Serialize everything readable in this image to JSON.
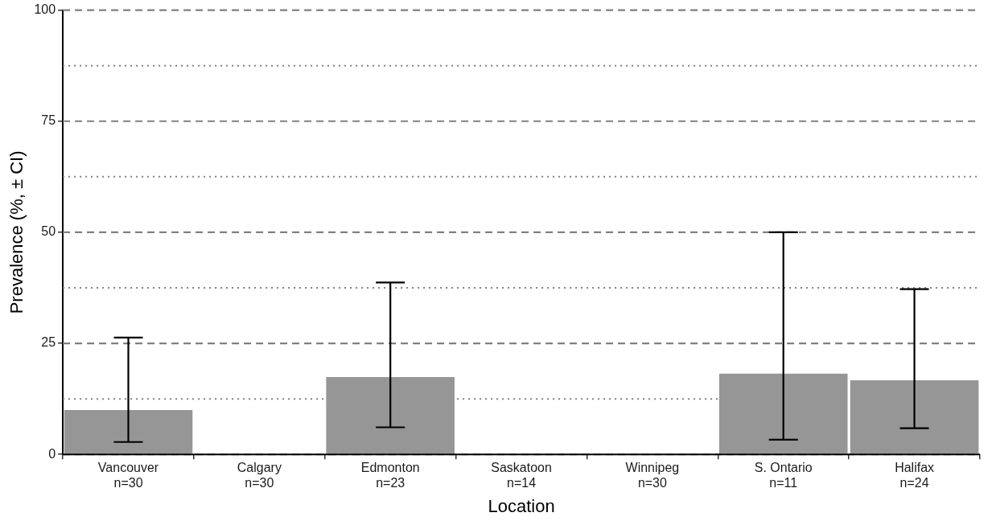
{
  "chart_data": {
    "type": "bar",
    "xlabel": "Location",
    "ylabel": "Prevalence (%, ± CI)",
    "categories": [
      "Vancouver\nn=30",
      "Calgary\nn=30",
      "Edmonton\nn=23",
      "Saskatoon\nn=14",
      "Winnipeg\nn=30",
      "S. Ontario\nn=11",
      "Halifax\nn=24"
    ],
    "values": [
      10,
      0,
      17.4,
      0,
      0,
      18.2,
      16.7
    ],
    "color": "#969696",
    "errors": [
      [
        2.8,
        26.3
      ],
      null,
      [
        6.1,
        38.7
      ],
      null,
      null,
      [
        3.3,
        50
      ],
      [
        5.9,
        37.2
      ]
    ],
    "ylim": [
      0,
      100
    ],
    "yticks": [
      0,
      {
        "value": 12.5,
        "label": null
      },
      25,
      {
        "value": 37.5,
        "label": null
      },
      50,
      {
        "value": 62.5,
        "label": null
      },
      75,
      {
        "value": 87.5,
        "label": null
      },
      100
    ],
    "grid": "y",
    "legend": false
  }
}
